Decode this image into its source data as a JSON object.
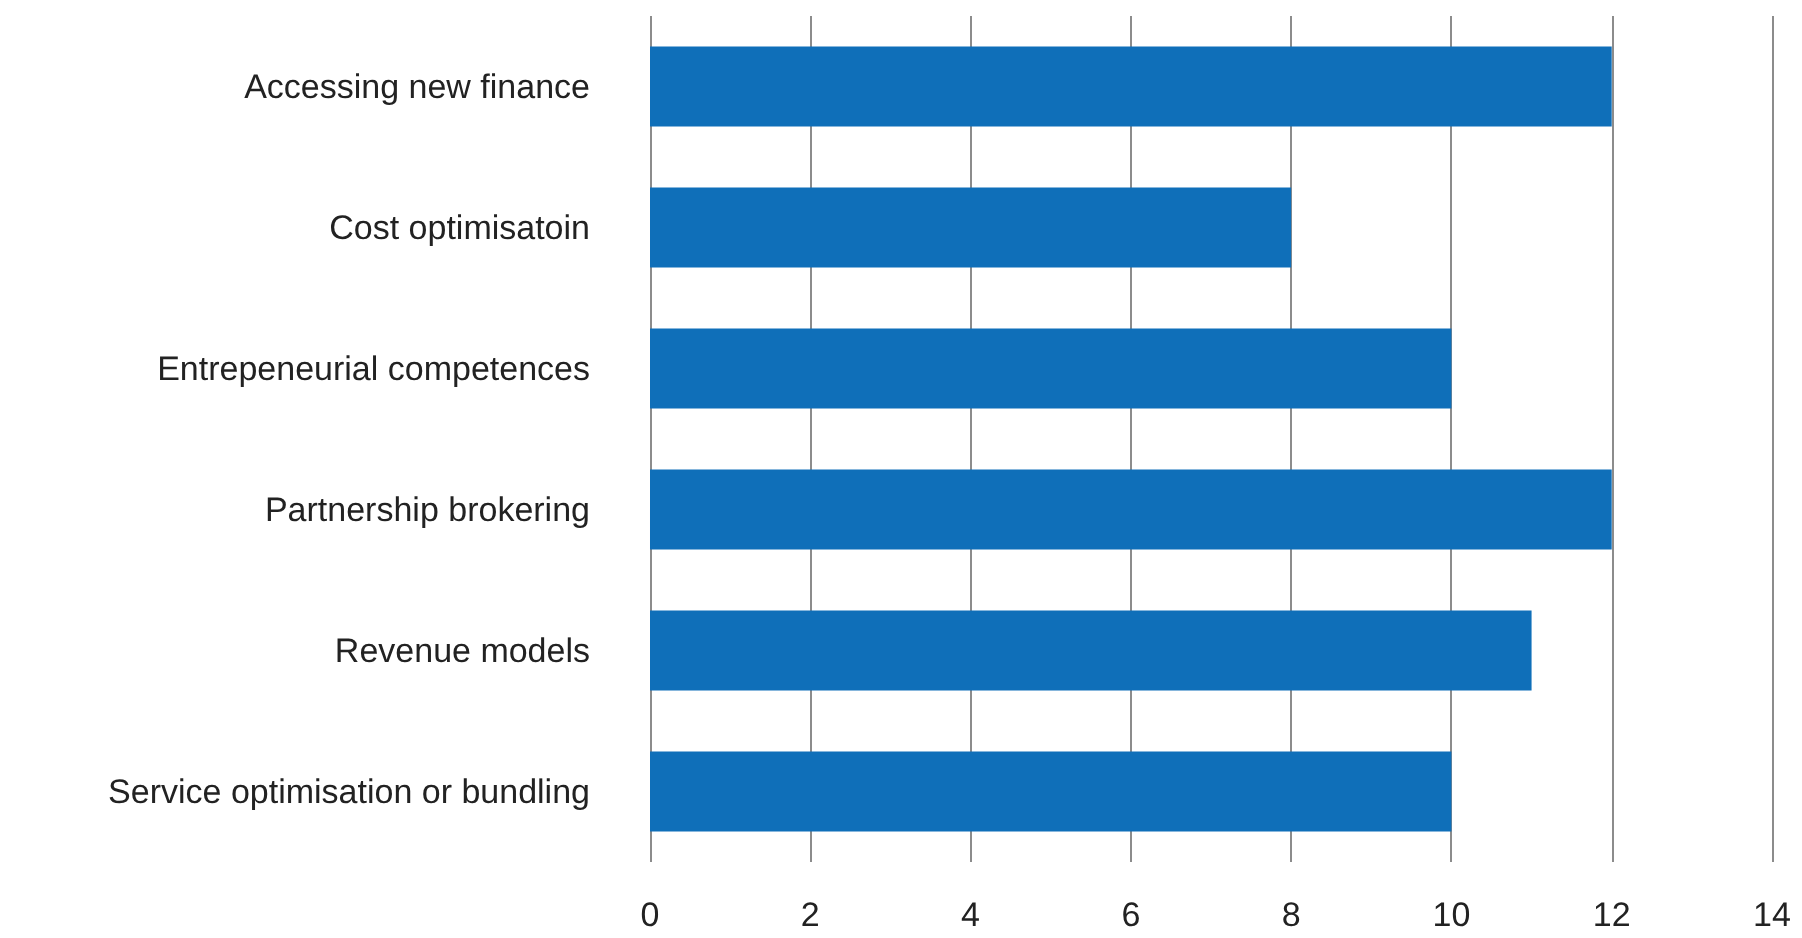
{
  "chart_data": {
    "type": "bar",
    "orientation": "horizontal",
    "categories": [
      "Accessing new finance",
      "Cost optimisatoin",
      "Entrepeneurial competences",
      "Partnership brokering",
      "Revenue models",
      "Service optimisation or bundling"
    ],
    "values": [
      12,
      8,
      10,
      12,
      11,
      10
    ],
    "color": "#0f6fb9",
    "xlim": [
      0,
      14
    ],
    "xticks": [
      0,
      2,
      4,
      6,
      8,
      10,
      12,
      14
    ],
    "grid": "x"
  }
}
